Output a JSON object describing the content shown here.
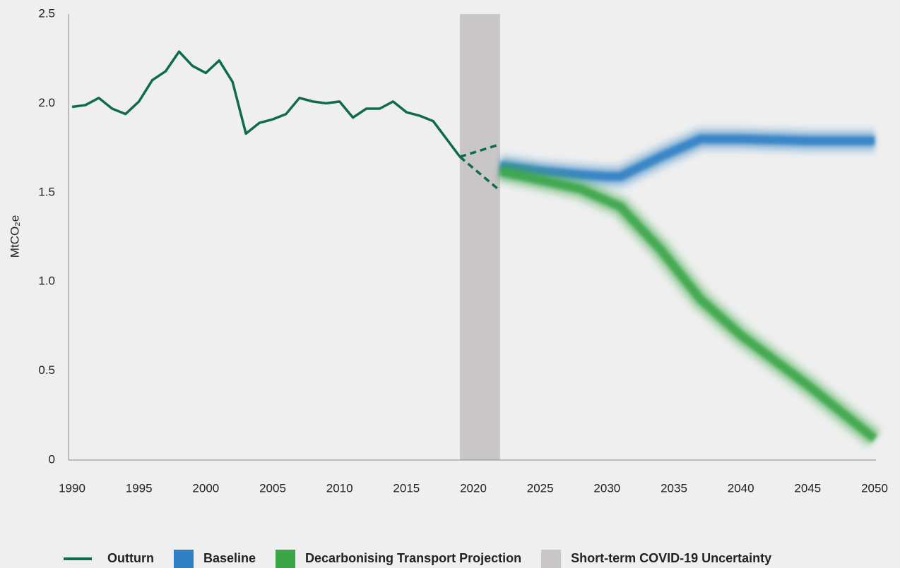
{
  "chart_data": {
    "type": "line",
    "y_label": "MtCO₂e",
    "xlim": [
      1990,
      2050
    ],
    "ylim": [
      0,
      2.5
    ],
    "xticks": [
      1990,
      1995,
      2000,
      2005,
      2010,
      2015,
      2020,
      2025,
      2030,
      2035,
      2040,
      2045,
      2050
    ],
    "yticks": [
      0,
      0.5,
      {
        "value": 1,
        "label": "1.0"
      },
      1.5,
      {
        "value": 2,
        "label": "2.0"
      },
      2.5
    ],
    "grid": false,
    "legend": "bottom",
    "shaded_region": {
      "name": "Short-term COVID-19 Uncertainty",
      "color": "#c8c6c7",
      "x": [
        2019,
        2022
      ]
    },
    "series": [
      {
        "name": "Outturn",
        "color": "#0f6b50",
        "style": "solid",
        "x": [
          1990,
          1991,
          1992,
          1993,
          1994,
          1995,
          1996,
          1997,
          1998,
          1999,
          2000,
          2001,
          2002,
          2003,
          2004,
          2005,
          2006,
          2007,
          2008,
          2009,
          2010,
          2011,
          2012,
          2013,
          2014,
          2015,
          2016,
          2017,
          2018,
          2019
        ],
        "values": [
          1.98,
          1.99,
          2.03,
          1.97,
          1.94,
          2.01,
          2.13,
          2.18,
          2.29,
          2.21,
          2.17,
          2.24,
          2.12,
          1.83,
          1.89,
          1.91,
          1.94,
          2.03,
          2.01,
          2.0,
          2.01,
          1.92,
          1.97,
          1.97,
          2.01,
          1.95,
          1.93,
          1.9,
          1.8,
          1.7
        ]
      },
      {
        "color": "#0f6b50",
        "style": "dashed",
        "x": [
          2019,
          2022
        ],
        "values": [
          1.7,
          1.77
        ]
      },
      {
        "color": "#0f6b50",
        "style": "dashed",
        "x": [
          2019,
          2022
        ],
        "values": [
          1.7,
          1.51
        ]
      },
      {
        "name": "Baseline",
        "color": "#2f7fc4",
        "style": "band",
        "x": [
          2022,
          2025,
          2028,
          2030,
          2031,
          2034,
          2037,
          2040,
          2045,
          2050
        ],
        "values": [
          1.65,
          1.62,
          1.6,
          1.59,
          1.59,
          1.7,
          1.8,
          1.8,
          1.79,
          1.79
        ]
      },
      {
        "name": "Decarbonising Transport Projection",
        "color": "#3aa648",
        "style": "band",
        "x": [
          2022,
          2025,
          2028,
          2031,
          2034,
          2037,
          2040,
          2045,
          2050
        ],
        "values": [
          1.62,
          1.57,
          1.52,
          1.42,
          1.18,
          0.9,
          0.7,
          0.42,
          0.12
        ]
      }
    ]
  }
}
